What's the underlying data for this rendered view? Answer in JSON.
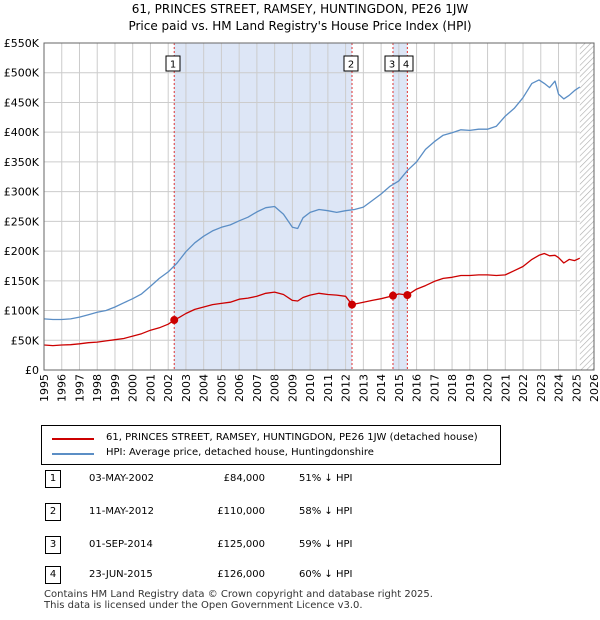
{
  "title_line1": "61, PRINCES STREET, RAMSEY, HUNTINGDON, PE26 1JW",
  "title_line2": "Price paid vs. HM Land Registry's House Price Index (HPI)",
  "colors": {
    "property": "#cc0000",
    "hpi": "#5b8ec5",
    "shade": "#dde6f6",
    "grid": "#cccccc",
    "marker_line": "#dd3333",
    "hatch": "#999999"
  },
  "legend": {
    "property_label": "61, PRINCES STREET, RAMSEY, HUNTINGDON, PE26 1JW (detached house)",
    "hpi_label": "HPI: Average price, detached house, Huntingdonshire"
  },
  "sales": [
    {
      "num": "1",
      "date": "03-MAY-2002",
      "price": "£84,000",
      "hpi": "51% ↓ HPI"
    },
    {
      "num": "2",
      "date": "11-MAY-2012",
      "price": "£110,000",
      "hpi": "58% ↓ HPI"
    },
    {
      "num": "3",
      "date": "01-SEP-2014",
      "price": "£125,000",
      "hpi": "59% ↓ HPI"
    },
    {
      "num": "4",
      "date": "23-JUN-2015",
      "price": "£126,000",
      "hpi": "60% ↓ HPI"
    }
  ],
  "footer": {
    "line1": "Contains HM Land Registry data © Crown copyright and database right 2025.",
    "line2": "This data is licensed under the Open Government Licence v3.0."
  },
  "chart_data": {
    "type": "line",
    "title": "61, PRINCES STREET, RAMSEY, HUNTINGDON, PE26 1JW",
    "subtitle": "Price paid vs. HM Land Registry's House Price Index (HPI)",
    "xlabel": "",
    "ylabel": "",
    "xlim": [
      1995,
      2026
    ],
    "ylim": [
      0,
      550000
    ],
    "grid": true,
    "legend_position": "below",
    "x_ticks": [
      "1995",
      "1996",
      "1997",
      "1998",
      "1999",
      "2000",
      "2001",
      "2002",
      "2003",
      "2004",
      "2005",
      "2006",
      "2007",
      "2008",
      "2009",
      "2010",
      "2011",
      "2012",
      "2013",
      "2014",
      "2015",
      "2016",
      "2017",
      "2018",
      "2019",
      "2020",
      "2021",
      "2022",
      "2023",
      "2024",
      "2025",
      "2026"
    ],
    "y_ticks": [
      {
        "value": 0,
        "label": "£0"
      },
      {
        "value": 50000,
        "label": "£50K"
      },
      {
        "value": 100000,
        "label": "£100K"
      },
      {
        "value": 150000,
        "label": "£150K"
      },
      {
        "value": 200000,
        "label": "£200K"
      },
      {
        "value": 250000,
        "label": "£250K"
      },
      {
        "value": 300000,
        "label": "£300K"
      },
      {
        "value": 350000,
        "label": "£350K"
      },
      {
        "value": 400000,
        "label": "£400K"
      },
      {
        "value": 450000,
        "label": "£450K"
      },
      {
        "value": 500000,
        "label": "£500K"
      },
      {
        "value": 550000,
        "label": "£550K"
      }
    ],
    "shaded_ranges": [
      [
        2002.34,
        2012.36
      ],
      [
        2014.67,
        2015.48
      ]
    ],
    "future_start": 2025.2,
    "series": [
      {
        "name": "61, PRINCES STREET, RAMSEY, HUNTINGDON, PE26 1JW (detached house)",
        "x": [
          1995.0,
          1995.5,
          1996.0,
          1996.5,
          1997.0,
          1997.5,
          1998.0,
          1998.5,
          1999.0,
          1999.5,
          2000.0,
          2000.5,
          2001.0,
          2001.5,
          2002.0,
          2002.34,
          2002.6,
          2003.0,
          2003.5,
          2004.0,
          2004.5,
          2005.0,
          2005.5,
          2006.0,
          2006.5,
          2007.0,
          2007.5,
          2008.0,
          2008.5,
          2009.0,
          2009.3,
          2009.6,
          2010.0,
          2010.5,
          2011.0,
          2011.5,
          2012.0,
          2012.36,
          2012.7,
          2013.0,
          2013.5,
          2014.0,
          2014.67,
          2015.0,
          2015.48,
          2016.0,
          2016.5,
          2017.0,
          2017.5,
          2018.0,
          2018.5,
          2019.0,
          2019.5,
          2020.0,
          2020.5,
          2021.0,
          2021.5,
          2022.0,
          2022.5,
          2022.9,
          2023.2,
          2023.5,
          2023.8,
          2024.0,
          2024.3,
          2024.6,
          2024.9,
          2025.2
        ],
        "values": [
          42000,
          41000,
          42000,
          42500,
          44000,
          46000,
          47000,
          49000,
          51000,
          53000,
          57000,
          61000,
          67000,
          71000,
          77000,
          84000,
          88000,
          95000,
          102000,
          106000,
          110000,
          112000,
          114000,
          119000,
          121000,
          124000,
          129000,
          131000,
          127000,
          117000,
          116000,
          122000,
          126000,
          129000,
          127000,
          126000,
          124000,
          110000,
          112000,
          114000,
          117000,
          120000,
          125000,
          128000,
          126000,
          136000,
          142000,
          149000,
          154000,
          156000,
          159000,
          159000,
          160000,
          160000,
          159000,
          160000,
          167000,
          174000,
          186000,
          193000,
          196000,
          192000,
          193000,
          189000,
          180000,
          186000,
          184000,
          188000
        ]
      },
      {
        "name": "HPI: Average price, detached house, Huntingdonshire",
        "x": [
          1995.0,
          1995.5,
          1996.0,
          1996.5,
          1997.0,
          1997.5,
          1998.0,
          1998.5,
          1999.0,
          1999.5,
          2000.0,
          2000.5,
          2001.0,
          2001.5,
          2002.0,
          2002.5,
          2003.0,
          2003.5,
          2004.0,
          2004.5,
          2005.0,
          2005.5,
          2006.0,
          2006.5,
          2007.0,
          2007.5,
          2008.0,
          2008.5,
          2009.0,
          2009.3,
          2009.6,
          2010.0,
          2010.5,
          2011.0,
          2011.5,
          2012.0,
          2012.5,
          2013.0,
          2013.5,
          2014.0,
          2014.5,
          2015.0,
          2015.5,
          2016.0,
          2016.5,
          2017.0,
          2017.5,
          2018.0,
          2018.5,
          2019.0,
          2019.5,
          2020.0,
          2020.5,
          2021.0,
          2021.5,
          2022.0,
          2022.5,
          2022.9,
          2023.2,
          2023.5,
          2023.8,
          2024.0,
          2024.3,
          2024.6,
          2024.9,
          2025.2
        ],
        "values": [
          86000,
          85000,
          85000,
          86000,
          89000,
          93000,
          97000,
          100000,
          106000,
          113000,
          120000,
          128000,
          141000,
          154000,
          165000,
          180000,
          199000,
          214000,
          225000,
          234000,
          240000,
          244000,
          251000,
          257000,
          266000,
          273000,
          275000,
          262000,
          240000,
          238000,
          256000,
          265000,
          270000,
          268000,
          265000,
          268000,
          270000,
          274000,
          285000,
          296000,
          309000,
          318000,
          336000,
          350000,
          371000,
          384000,
          395000,
          399000,
          404000,
          403000,
          405000,
          405000,
          410000,
          427000,
          440000,
          458000,
          482000,
          488000,
          482000,
          475000,
          486000,
          464000,
          456000,
          462000,
          470000,
          476000
        ]
      }
    ],
    "annotations": [
      {
        "label": "1",
        "x": 2002.34,
        "y": 84000
      },
      {
        "label": "2",
        "x": 2012.36,
        "y": 110000
      },
      {
        "label": "3",
        "x": 2014.67,
        "y": 125000
      },
      {
        "label": "4",
        "x": 2015.48,
        "y": 126000
      }
    ]
  }
}
